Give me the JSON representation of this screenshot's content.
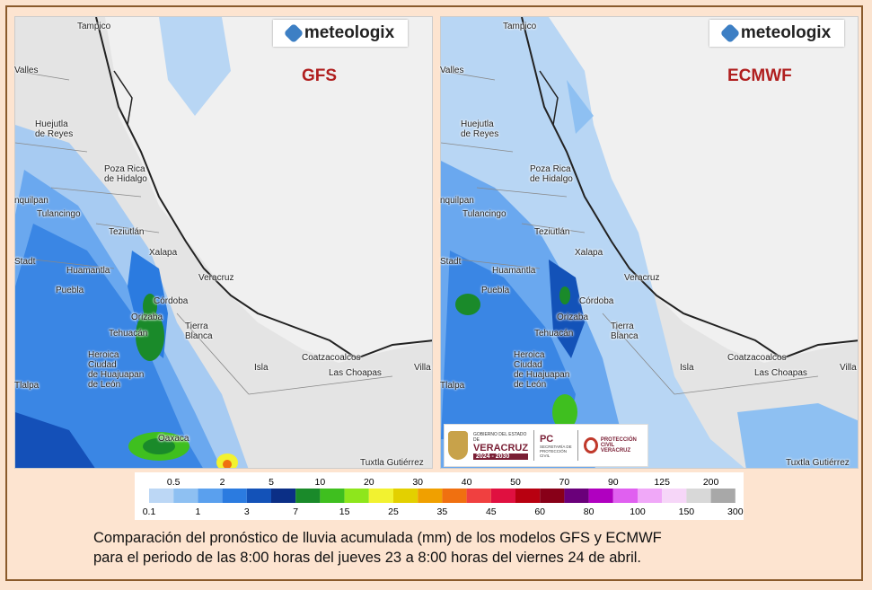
{
  "logo_text": "meteologix",
  "maps": [
    {
      "model": "GFS"
    },
    {
      "model": "ECMWF"
    }
  ],
  "cities": [
    {
      "name": "Tampico"
    },
    {
      "name": "Valles"
    },
    {
      "name": "Huejutla\nde Reyes"
    },
    {
      "name": "Poza Rica\nde Hidalgo"
    },
    {
      "name": "nquilpan"
    },
    {
      "name": "Tulancingo"
    },
    {
      "name": "Teziutlán"
    },
    {
      "name": "Xalapa"
    },
    {
      "name": "Stadt"
    },
    {
      "name": "Huamantla"
    },
    {
      "name": "Veracruz"
    },
    {
      "name": "Puebla"
    },
    {
      "name": "Córdoba"
    },
    {
      "name": "Orizaba"
    },
    {
      "name": "Tierra\nBlanca"
    },
    {
      "name": "Tehuacán"
    },
    {
      "name": "Heroica\nCiudad\nde Huajuapan\nde León"
    },
    {
      "name": "Isla"
    },
    {
      "name": "Coatzacoalcos"
    },
    {
      "name": "Las Choapas"
    },
    {
      "name": "Villa"
    },
    {
      "name": "Tlalpa"
    },
    {
      "name": "Oaxaca"
    },
    {
      "name": "Tuxtla Gutiérrez"
    }
  ],
  "legend": {
    "top_labels": [
      "0.5",
      "2",
      "5",
      "10",
      "20",
      "30",
      "40",
      "50",
      "70",
      "90",
      "125",
      "200"
    ],
    "bottom_labels": [
      "0.1",
      "1",
      "3",
      "7",
      "15",
      "25",
      "35",
      "45",
      "60",
      "80",
      "100",
      "150",
      "300"
    ],
    "colors": [
      "#bcd7f5",
      "#8ec0f2",
      "#5aa0ee",
      "#2b7be0",
      "#1352b8",
      "#0b2f86",
      "#1a8a2a",
      "#3fbf1f",
      "#8ee61c",
      "#f2f230",
      "#e3d000",
      "#f0a000",
      "#f07010",
      "#f04040",
      "#e01040",
      "#b80010",
      "#880018",
      "#6a007a",
      "#b000c0",
      "#e060f0",
      "#f0a8f8",
      "#f6d6f8",
      "#d8d8d8",
      "#a8a8a8"
    ]
  },
  "gobierno": {
    "line1": "GOBIERNO DEL ESTADO DE",
    "line2": "VERACRUZ",
    "line3": "2024 - 2030",
    "pc": "PC",
    "pc_sub": "SECRETARÍA DE\nPROTECCIÓN CIVIL",
    "pc_right": "PROTECCIÓN CIVIL\nVERACRUZ"
  },
  "caption": {
    "line1": "Comparación del pronóstico de lluvia acumulada (mm) de los modelos GFS y ECMWF",
    "line2": "para el periodo de las 8:00 horas del jueves 23 a 8:00 horas del viernes 24 de abril."
  }
}
